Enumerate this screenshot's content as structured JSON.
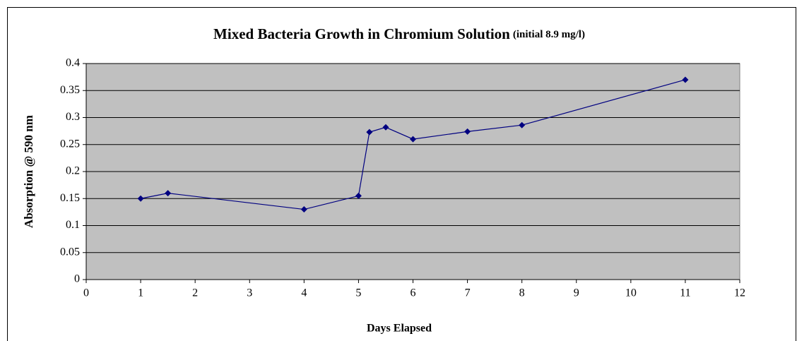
{
  "chart_data": {
    "type": "line",
    "title": "Mixed Bacteria Growth in Chromium Solution",
    "subtitle": "(initial 8.9 mg/l)",
    "x_label": "Days Elapsed",
    "y_label": "Absorption @ 590 nm",
    "x": [
      1,
      1.5,
      4,
      5,
      5.2,
      5.5,
      6,
      7,
      8,
      11
    ],
    "series": [
      {
        "name": "Absorption",
        "color": "#000080",
        "values": [
          0.15,
          0.16,
          0.13,
          0.155,
          0.273,
          0.282,
          0.26,
          0.274,
          0.286,
          0.37
        ]
      }
    ],
    "xlim": [
      0,
      12
    ],
    "xticks": [
      0,
      1,
      2,
      3,
      4,
      5,
      6,
      7,
      8,
      9,
      10,
      11,
      12
    ],
    "ylim": [
      0,
      0.4
    ],
    "yticks": [
      0,
      0.05,
      0.1,
      0.15,
      0.2,
      0.25,
      0.3,
      0.35,
      0.4
    ],
    "grid": true,
    "plot_background": "#c0c0c0"
  }
}
